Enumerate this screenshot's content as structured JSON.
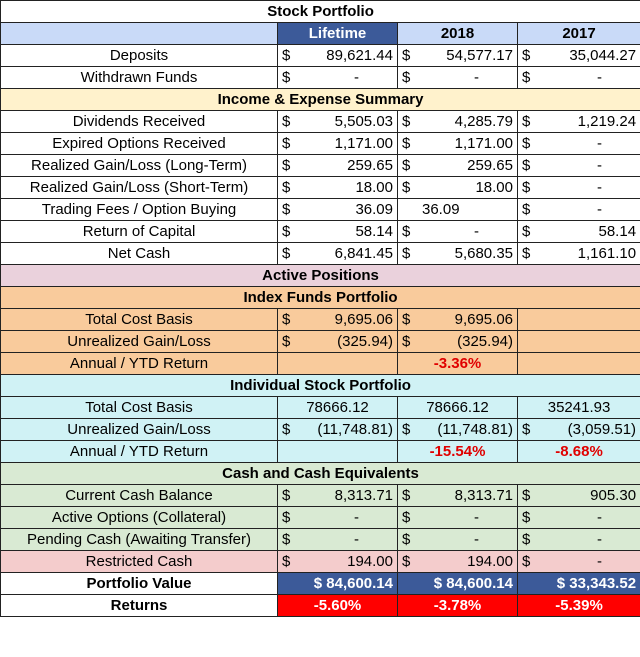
{
  "title": "Stock Portfolio",
  "columns": [
    "Lifetime",
    "2018",
    "2017"
  ],
  "rows_top": [
    {
      "label": "Deposits",
      "lifetime": [
        "$",
        "89,621.44"
      ],
      "y2018": [
        "$",
        "54,577.17"
      ],
      "y2017": [
        "$",
        "35,044.27"
      ]
    },
    {
      "label": "Withdrawn Funds",
      "lifetime": [
        "$",
        "-"
      ],
      "y2018": [
        "$",
        "-"
      ],
      "y2017": [
        "$",
        "-"
      ]
    }
  ],
  "sections": {
    "income": "Income & Expense Summary",
    "active": "Active Positions",
    "index": "Index Funds Portfolio",
    "individual": "Individual Stock Portfolio",
    "cash": "Cash and Cash Equivalents"
  },
  "income_rows": [
    {
      "label": "Dividends Received",
      "lifetime": [
        "$",
        "5,505.03"
      ],
      "y2018": [
        "$",
        "4,285.79"
      ],
      "y2017": [
        "$",
        "1,219.24"
      ]
    },
    {
      "label": "Expired Options Received",
      "lifetime": [
        "$",
        "1,171.00"
      ],
      "y2018": [
        "$",
        "1,171.00"
      ],
      "y2017": [
        "$",
        "-"
      ]
    },
    {
      "label": "Realized Gain/Loss (Long-Term)",
      "lifetime": [
        "$",
        "259.65"
      ],
      "y2018": [
        "$",
        "259.65"
      ],
      "y2017": [
        "$",
        "-"
      ]
    },
    {
      "label": "Realized Gain/Loss (Short-Term)",
      "lifetime": [
        "$",
        "18.00"
      ],
      "y2018": [
        "$",
        "18.00"
      ],
      "y2017": [
        "$",
        "-"
      ]
    },
    {
      "label": "Trading Fees / Option Buying",
      "lifetime": [
        "$",
        "36.09"
      ],
      "y2018": [
        "",
        "36.09"
      ],
      "y2017": [
        "$",
        "-"
      ]
    },
    {
      "label": "Return of Capital",
      "lifetime": [
        "$",
        "58.14"
      ],
      "y2018": [
        "$",
        "-"
      ],
      "y2017": [
        "$",
        "58.14"
      ]
    },
    {
      "label": "Net Cash",
      "lifetime": [
        "$",
        "6,841.45"
      ],
      "y2018": [
        "$",
        "5,680.35"
      ],
      "y2017": [
        "$",
        "1,161.10"
      ]
    }
  ],
  "index_rows": {
    "cost_basis": {
      "label": "Total Cost Basis",
      "lifetime": [
        "$",
        "9,695.06"
      ],
      "y2018": [
        "$",
        "9,695.06"
      ]
    },
    "unrealized": {
      "label": "Unrealized Gain/Loss",
      "lifetime": [
        "$",
        "(325.94)"
      ],
      "y2018": [
        "$",
        "(325.94)"
      ]
    },
    "annual": {
      "label": "Annual / YTD Return",
      "y2018": "-3.36%"
    }
  },
  "individual_rows": {
    "cost_basis": {
      "label": "Total Cost Basis",
      "lifetime": "78666.12",
      "y2018": "78666.12",
      "y2017": "35241.93"
    },
    "unrealized": {
      "label": "Unrealized Gain/Loss",
      "lifetime": [
        "$",
        "(11,748.81)"
      ],
      "y2018": [
        "$",
        "(11,748.81)"
      ],
      "y2017": [
        "$",
        "(3,059.51)"
      ]
    },
    "annual": {
      "label": "Annual / YTD Return",
      "y2018": "-15.54%",
      "y2017": "-8.68%"
    }
  },
  "cash_rows": [
    {
      "label": "Current Cash Balance",
      "lifetime": [
        "$",
        "8,313.71"
      ],
      "y2018": [
        "$",
        "8,313.71"
      ],
      "y2017": [
        "$",
        "905.30"
      ]
    },
    {
      "label": "Active Options (Collateral)",
      "lifetime": [
        "$",
        "-"
      ],
      "y2018": [
        "$",
        "-"
      ],
      "y2017": [
        "$",
        "-"
      ]
    },
    {
      "label": "Pending Cash (Awaiting Transfer)",
      "lifetime": [
        "$",
        "-"
      ],
      "y2018": [
        "$",
        "-"
      ],
      "y2017": [
        "$",
        "-"
      ]
    }
  ],
  "restricted": {
    "label": "Restricted Cash",
    "lifetime": [
      "$",
      "194.00"
    ],
    "y2018": [
      "$",
      "194.00"
    ],
    "y2017": [
      "$",
      "-"
    ]
  },
  "portfolio_value": {
    "label": "Portfolio Value",
    "lifetime": "$ 84,600.14",
    "y2018": "$ 84,600.14",
    "y2017": "$ 33,343.52"
  },
  "returns": {
    "label": "Returns",
    "lifetime": "-5.60%",
    "y2018": "-3.78%",
    "y2017": "-5.39%"
  },
  "colors": {
    "header_dark": "#3c5a99",
    "header_light": "#c9daf8",
    "income_section": "#fff2cc",
    "active_section": "#ead1dc",
    "index_section": "#f9cb9c",
    "individual_section": "#d0f2f5",
    "cash_section": "#d9ead3",
    "restricted_row": "#f4cccc",
    "negative_text": "#e00000",
    "returns_fill": "#ff0000"
  }
}
